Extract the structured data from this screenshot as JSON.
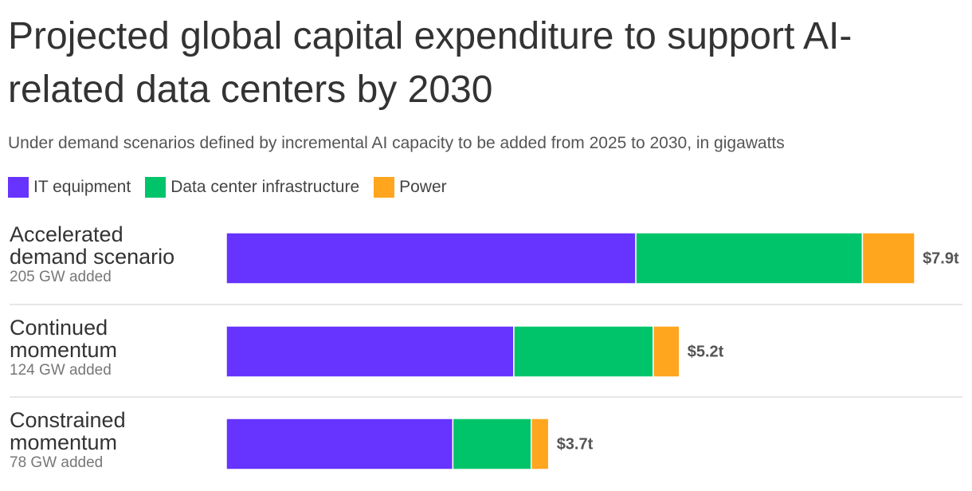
{
  "chart_data": {
    "type": "stacked-bar-horizontal",
    "title": "Projected global capital expenditure to support AI-related data centers by 2030",
    "subtitle": "Under demand scenarios defined by incremental AI capacity to be added from 2025 to 2030, in gigawatts",
    "categories": [
      "Accelerated demand scenario",
      "Continued momentum",
      "Constrained momentum"
    ],
    "category_sublabels": [
      "205 GW added",
      "124 GW added",
      "78 GW added"
    ],
    "series": [
      {
        "name": "IT equipment",
        "color": "#6633ff",
        "values": [
          4.7,
          3.3,
          2.6
        ]
      },
      {
        "name": "Data center infrastructure",
        "color": "#00c46a",
        "values": [
          2.6,
          1.6,
          0.9
        ]
      },
      {
        "name": "Power",
        "color": "#ffa51e",
        "values": [
          0.6,
          0.3,
          0.2
        ]
      }
    ],
    "totals": [
      7.9,
      5.2,
      3.7
    ],
    "total_labels": [
      "$7.9t",
      "$5.2t",
      "$3.7t"
    ],
    "xlim": [
      0,
      8
    ]
  }
}
